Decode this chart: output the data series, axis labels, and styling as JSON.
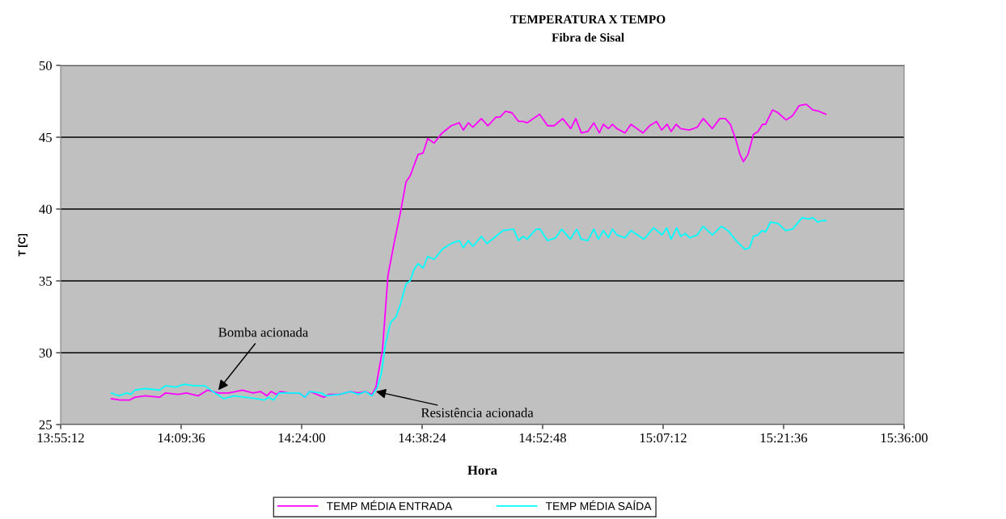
{
  "chart_data": {
    "type": "line",
    "title": "TEMPERATURA X TEMPO",
    "subtitle": "Fibra de Sisal",
    "xlabel": "Hora",
    "ylabel": "T [C]",
    "xlim": [
      13.92,
      15.6
    ],
    "xticks": [
      {
        "value": 13.92,
        "label": "13:55:12"
      },
      {
        "value": 14.16,
        "label": "14:09:36"
      },
      {
        "value": 14.4,
        "label": "14:24:00"
      },
      {
        "value": 14.64,
        "label": "14:38:24"
      },
      {
        "value": 14.88,
        "label": "14:52:48"
      },
      {
        "value": 15.12,
        "label": "15:07:12"
      },
      {
        "value": 15.36,
        "label": "15:21:36"
      },
      {
        "value": 15.6,
        "label": "15:36:00"
      }
    ],
    "ylim": [
      25,
      50
    ],
    "yticks": [
      25,
      30,
      35,
      40,
      45,
      50
    ],
    "grid": "y",
    "legend": "bottom",
    "marker": "none",
    "line_style": "solid",
    "annotations": [
      {
        "text": "Bomba acionada",
        "x": 14.234,
        "y": 27.4
      },
      {
        "text": "Resistência acionada",
        "x": 14.548,
        "y": 27.3
      }
    ],
    "series": [
      {
        "name": "TEMP MÉDIA ENTRADA",
        "color": "#ff00ff",
        "x": [
          14.021,
          14.038,
          14.057,
          14.068,
          14.089,
          14.117,
          14.129,
          14.154,
          14.17,
          14.194,
          14.213,
          14.234,
          14.255,
          14.282,
          14.303,
          14.318,
          14.331,
          14.339,
          14.35,
          14.358,
          14.374,
          14.395,
          14.406,
          14.416,
          14.444,
          14.455,
          14.476,
          14.497,
          14.513,
          14.527,
          14.54,
          14.548,
          14.561,
          14.572,
          14.584,
          14.597,
          14.608,
          14.616,
          14.632,
          14.642,
          14.651,
          14.664,
          14.68,
          14.698,
          14.714,
          14.722,
          14.732,
          14.741,
          14.758,
          14.771,
          14.787,
          14.795,
          14.806,
          14.819,
          14.832,
          14.841,
          14.849,
          14.874,
          14.89,
          14.903,
          14.92,
          14.936,
          14.946,
          14.957,
          14.97,
          14.982,
          14.993,
          15.001,
          15.011,
          15.019,
          15.028,
          15.044,
          15.056,
          15.08,
          15.093,
          15.107,
          15.117,
          15.128,
          15.136,
          15.146,
          15.155,
          15.172,
          15.188,
          15.2,
          15.218,
          15.233,
          15.244,
          15.254,
          15.265,
          15.273,
          15.28,
          15.289,
          15.3,
          15.309,
          15.318,
          15.324,
          15.338,
          15.349,
          15.365,
          15.378,
          15.391,
          15.405,
          15.418,
          15.431,
          15.444
        ],
        "values": [
          26.8,
          26.7,
          26.7,
          26.9,
          27.0,
          26.9,
          27.2,
          27.1,
          27.2,
          27.0,
          27.4,
          27.2,
          27.2,
          27.4,
          27.2,
          27.3,
          27.0,
          27.3,
          27.1,
          27.3,
          27.2,
          27.2,
          26.9,
          27.3,
          26.9,
          27.1,
          27.1,
          27.3,
          27.2,
          27.3,
          27.1,
          27.6,
          30.2,
          35.4,
          37.6,
          39.8,
          41.9,
          42.3,
          43.8,
          43.9,
          44.9,
          44.6,
          45.3,
          45.8,
          46.0,
          45.5,
          46.0,
          45.7,
          46.3,
          45.8,
          46.4,
          46.4,
          46.8,
          46.7,
          46.1,
          46.1,
          46.0,
          46.6,
          45.8,
          45.8,
          46.3,
          45.6,
          46.3,
          45.3,
          45.4,
          46.0,
          45.3,
          45.9,
          45.6,
          45.9,
          45.6,
          45.3,
          45.9,
          45.3,
          45.8,
          46.1,
          45.5,
          45.9,
          45.4,
          45.9,
          45.6,
          45.5,
          45.7,
          46.3,
          45.6,
          46.3,
          46.3,
          45.9,
          44.8,
          43.8,
          43.3,
          43.8,
          45.2,
          45.4,
          45.9,
          45.9,
          46.9,
          46.7,
          46.2,
          46.5,
          47.2,
          47.3,
          46.9,
          46.8,
          46.6
        ]
      },
      {
        "name": "TEMP MÉDIA SAÍDA",
        "color": "#00ffff",
        "x": [
          14.021,
          14.036,
          14.052,
          14.06,
          14.068,
          14.089,
          14.117,
          14.129,
          14.149,
          14.166,
          14.186,
          14.207,
          14.223,
          14.245,
          14.266,
          14.287,
          14.31,
          14.326,
          14.334,
          14.344,
          14.355,
          14.374,
          14.395,
          14.406,
          14.416,
          14.439,
          14.448,
          14.476,
          14.497,
          14.513,
          14.527,
          14.54,
          14.551,
          14.559,
          14.567,
          14.577,
          14.588,
          14.597,
          14.608,
          14.616,
          14.624,
          14.632,
          14.642,
          14.651,
          14.664,
          14.68,
          14.698,
          14.714,
          14.722,
          14.732,
          14.741,
          14.758,
          14.769,
          14.787,
          14.801,
          14.822,
          14.832,
          14.841,
          14.849,
          14.867,
          14.875,
          14.89,
          14.906,
          14.918,
          14.935,
          14.948,
          14.957,
          14.97,
          14.982,
          14.991,
          15.001,
          15.011,
          15.019,
          15.028,
          15.044,
          15.056,
          15.082,
          15.101,
          15.118,
          15.127,
          15.136,
          15.147,
          15.155,
          15.164,
          15.173,
          15.188,
          15.2,
          15.218,
          15.236,
          15.249,
          15.268,
          15.283,
          15.292,
          15.3,
          15.309,
          15.317,
          15.324,
          15.334,
          15.349,
          15.364,
          15.378,
          15.397,
          15.41,
          15.418,
          15.428,
          15.437,
          15.444
        ],
        "values": [
          27.2,
          27.0,
          27.2,
          27.1,
          27.4,
          27.5,
          27.4,
          27.7,
          27.6,
          27.8,
          27.7,
          27.7,
          27.3,
          26.8,
          27.0,
          26.9,
          26.8,
          26.7,
          26.9,
          26.7,
          27.2,
          27.2,
          27.2,
          26.9,
          27.3,
          27.2,
          27.0,
          27.1,
          27.3,
          27.1,
          27.3,
          27.0,
          27.6,
          28.6,
          30.6,
          32.1,
          32.5,
          33.4,
          34.8,
          35.0,
          35.8,
          36.2,
          35.9,
          36.7,
          36.5,
          37.2,
          37.6,
          37.8,
          37.3,
          37.8,
          37.4,
          38.1,
          37.6,
          38.1,
          38.5,
          38.6,
          37.8,
          38.1,
          37.9,
          38.6,
          38.6,
          37.8,
          38.0,
          38.6,
          37.9,
          38.6,
          37.9,
          37.8,
          38.6,
          37.9,
          38.5,
          38.0,
          38.6,
          38.2,
          38.0,
          38.5,
          37.9,
          38.7,
          38.2,
          38.7,
          37.9,
          38.7,
          38.1,
          38.3,
          38.0,
          38.2,
          38.8,
          38.2,
          38.8,
          38.5,
          37.7,
          37.2,
          37.3,
          38.1,
          38.2,
          38.5,
          38.4,
          39.1,
          39.0,
          38.5,
          38.6,
          39.4,
          39.3,
          39.4,
          39.1,
          39.2,
          39.2
        ]
      }
    ]
  }
}
